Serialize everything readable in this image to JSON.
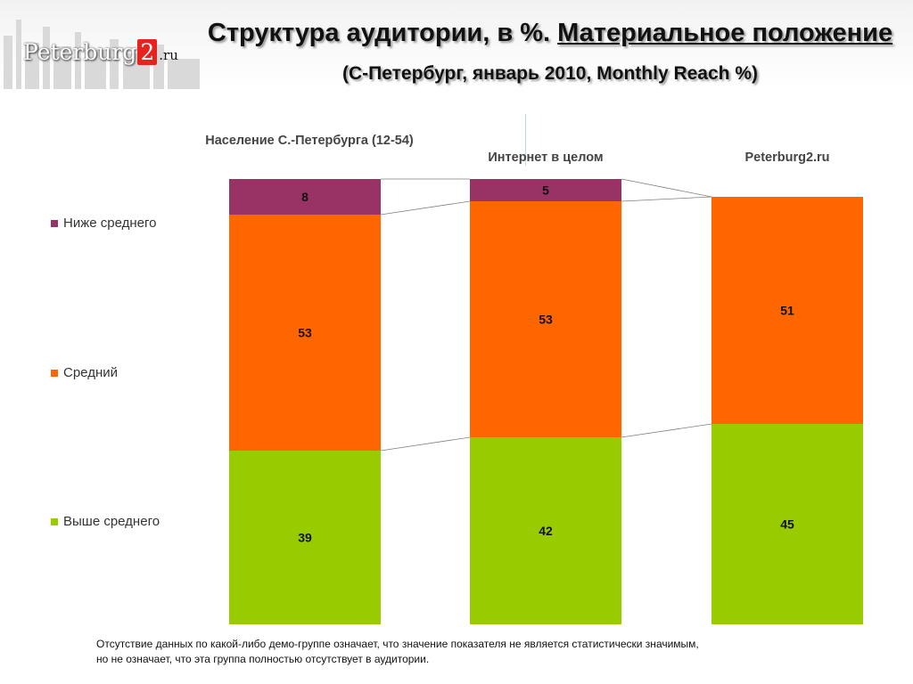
{
  "header": {
    "logo_main": "Peterburg",
    "logo_num": "2",
    "logo_tld": ".ru",
    "title_part1": "Структура аудитории, в %. ",
    "title_part2": "Материальное положение",
    "title_part3": " (С-Петербург, январь 2010, Monthly Reach %)"
  },
  "colors": {
    "below_average": "#993366",
    "average": "#ff6600",
    "above_average": "#99cc00"
  },
  "chart_data": {
    "type": "bar",
    "stacked": true,
    "categories": [
      "Население С.-Петербурга (12-54)",
      "Интернет в целом",
      "Peterburg2.ru"
    ],
    "series": [
      {
        "name": "Выше среднего",
        "values": [
          39,
          42,
          45
        ]
      },
      {
        "name": "Средний",
        "values": [
          53,
          53,
          51
        ]
      },
      {
        "name": "Ниже среднего",
        "values": [
          8,
          5,
          null
        ]
      }
    ],
    "legend_position": "left",
    "grid": false
  },
  "footnote": {
    "line1": "Отсутствие данных по какой-либо демо-группе означает, что значение показателя не является статистически значимым,",
    "line2": "но не означает, что эта группа  полностью отсутствует в аудитории."
  }
}
